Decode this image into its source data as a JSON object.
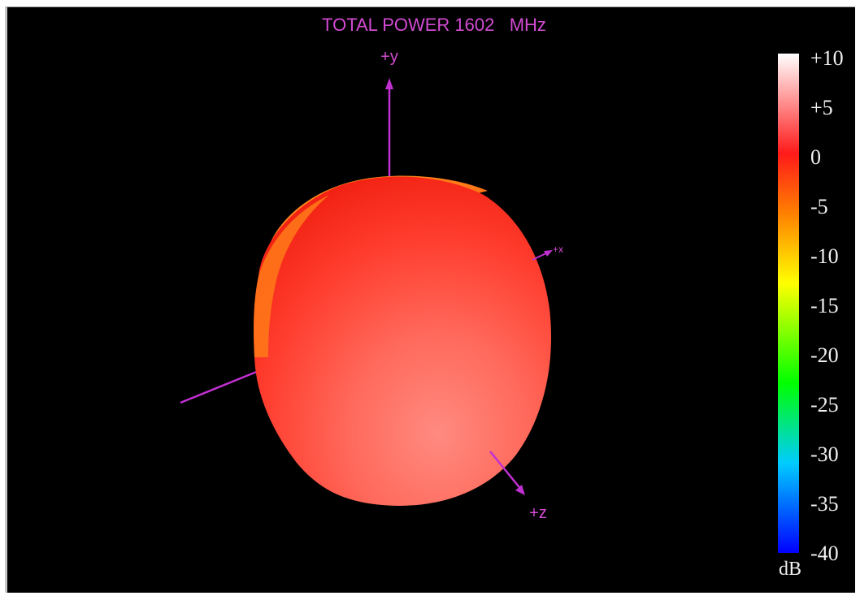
{
  "title": "TOTAL POWER 1602   MHz",
  "axes": {
    "y_label": "+y",
    "x_label": "+x",
    "z_label": "+z"
  },
  "colorbar": {
    "unit": "dB",
    "ticks": [
      "+10",
      "+5",
      "0",
      "-5",
      "-10",
      "-15",
      "-20",
      "-25",
      "-30",
      "-35",
      "-40"
    ],
    "range": [
      -40,
      10
    ],
    "colors": [
      "#ffffff",
      "#ff1a1a",
      "#ff8000",
      "#ffff00",
      "#00ff00",
      "#00ccff",
      "#0000ff"
    ]
  },
  "colors": {
    "axis": "#c030d0",
    "background": "#000000",
    "surface_main": "#ff3a2a",
    "surface_edge": "#ff8a1a"
  }
}
